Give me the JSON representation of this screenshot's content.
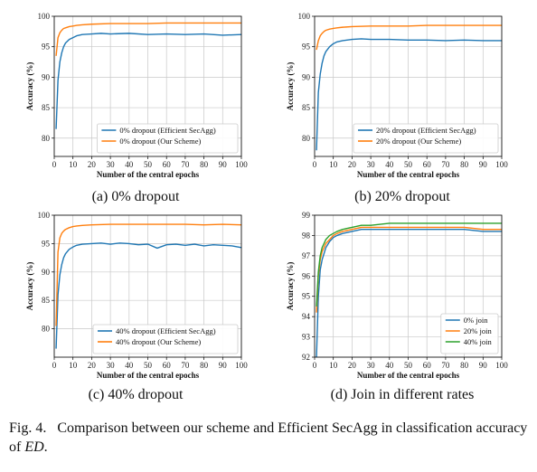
{
  "colors": {
    "blue": "#1f77b4",
    "orange": "#ff7f0e",
    "green": "#2ca02c",
    "grid": "#c8c8c8",
    "frame": "#000000"
  },
  "caption": {
    "label": "Fig. 4.",
    "text": "Comparison between our scheme and Efficient SecAgg in classification accuracy of",
    "math": "ED",
    "end": "."
  },
  "chart_data": [
    {
      "type": "line",
      "subcaption": "(a)  0% dropout",
      "xlabel": "Number of the central epochs",
      "ylabel": "Accuracy (%)",
      "xlim": [
        0,
        100
      ],
      "ylim": [
        77,
        100
      ],
      "xticks": [
        0,
        10,
        20,
        30,
        40,
        50,
        60,
        70,
        80,
        90,
        100
      ],
      "yticks": [
        80,
        85,
        90,
        95,
        100
      ],
      "grid": true,
      "legend_position": "lower-right",
      "series": [
        {
          "name": "0% dropout (Efficient SecAgg)",
          "color": "blue",
          "x": [
            1,
            2,
            3,
            4,
            5,
            6,
            8,
            10,
            12,
            15,
            20,
            25,
            30,
            40,
            50,
            60,
            70,
            80,
            90,
            100
          ],
          "y": [
            81.5,
            89.5,
            92.5,
            94.0,
            95.0,
            95.6,
            96.2,
            96.5,
            96.8,
            97.0,
            97.1,
            97.2,
            97.1,
            97.2,
            97.0,
            97.1,
            97.0,
            97.1,
            96.9,
            97.0
          ]
        },
        {
          "name": "0% dropout (Our Scheme)",
          "color": "orange",
          "x": [
            1,
            2,
            3,
            4,
            5,
            6,
            8,
            10,
            12,
            15,
            20,
            30,
            40,
            50,
            60,
            70,
            80,
            90,
            100
          ],
          "y": [
            93.5,
            96.5,
            97.3,
            97.7,
            98.0,
            98.1,
            98.3,
            98.4,
            98.5,
            98.6,
            98.7,
            98.8,
            98.8,
            98.8,
            98.9,
            98.9,
            98.9,
            98.9,
            98.9
          ]
        }
      ]
    },
    {
      "type": "line",
      "subcaption": "(b)  20% dropout",
      "xlabel": "Number of the central epochs",
      "ylabel": "Accuracy (%)",
      "xlim": [
        0,
        100
      ],
      "ylim": [
        77,
        100
      ],
      "xticks": [
        0,
        10,
        20,
        30,
        40,
        50,
        60,
        70,
        80,
        90,
        100
      ],
      "yticks": [
        80,
        85,
        90,
        95,
        100
      ],
      "grid": true,
      "legend_position": "lower-right",
      "series": [
        {
          "name": "20% dropout (Efficient SecAgg)",
          "color": "blue",
          "x": [
            1,
            2,
            3,
            4,
            5,
            6,
            8,
            10,
            12,
            15,
            20,
            25,
            30,
            40,
            50,
            60,
            70,
            80,
            90,
            100
          ],
          "y": [
            78.0,
            87.5,
            90.5,
            92.3,
            93.5,
            94.2,
            95.0,
            95.5,
            95.8,
            96.0,
            96.2,
            96.3,
            96.2,
            96.2,
            96.1,
            96.1,
            96.0,
            96.1,
            96.0,
            96.0
          ]
        },
        {
          "name": "20% dropout (Our Scheme)",
          "color": "orange",
          "x": [
            1,
            2,
            3,
            4,
            5,
            6,
            8,
            10,
            12,
            15,
            20,
            30,
            40,
            50,
            60,
            70,
            80,
            90,
            100
          ],
          "y": [
            94.5,
            96.0,
            96.8,
            97.2,
            97.5,
            97.7,
            97.9,
            98.0,
            98.1,
            98.2,
            98.3,
            98.4,
            98.4,
            98.4,
            98.5,
            98.5,
            98.5,
            98.5,
            98.5
          ]
        }
      ]
    },
    {
      "type": "line",
      "subcaption": "(c)  40% dropout",
      "xlabel": "Number of the central epochs",
      "ylabel": "Accuracy (%)",
      "xlim": [
        0,
        100
      ],
      "ylim": [
        75,
        100
      ],
      "xticks": [
        0,
        10,
        20,
        30,
        40,
        50,
        60,
        70,
        80,
        90,
        100
      ],
      "yticks": [
        80,
        85,
        90,
        95,
        100
      ],
      "grid": true,
      "legend_position": "lower-right",
      "series": [
        {
          "name": "40% dropout (Efficient SecAgg)",
          "color": "blue",
          "x": [
            1,
            2,
            3,
            4,
            5,
            6,
            8,
            10,
            12,
            15,
            20,
            25,
            30,
            35,
            40,
            45,
            50,
            55,
            60,
            65,
            70,
            75,
            80,
            85,
            90,
            95,
            100
          ],
          "y": [
            76.5,
            86.0,
            89.5,
            91.3,
            92.5,
            93.2,
            94.0,
            94.4,
            94.7,
            94.9,
            95.0,
            95.1,
            94.9,
            95.1,
            95.0,
            94.8,
            94.9,
            94.2,
            94.8,
            94.9,
            94.7,
            94.9,
            94.6,
            94.8,
            94.7,
            94.6,
            94.3
          ]
        },
        {
          "name": "40% dropout (Our Scheme)",
          "color": "orange",
          "x": [
            1,
            2,
            3,
            4,
            5,
            6,
            8,
            10,
            12,
            15,
            20,
            30,
            40,
            50,
            60,
            70,
            80,
            90,
            100
          ],
          "y": [
            80.5,
            93.5,
            96.0,
            96.8,
            97.2,
            97.5,
            97.8,
            98.0,
            98.1,
            98.2,
            98.3,
            98.4,
            98.4,
            98.4,
            98.4,
            98.4,
            98.3,
            98.4,
            98.3
          ]
        }
      ]
    },
    {
      "type": "line",
      "subcaption": "(d)  Join in different rates",
      "xlabel": "Number of the central epochs",
      "ylabel": "Accuracy (%)",
      "xlim": [
        0,
        100
      ],
      "ylim": [
        92,
        99
      ],
      "xticks": [
        0,
        10,
        20,
        30,
        40,
        50,
        60,
        70,
        80,
        90,
        100
      ],
      "yticks": [
        92,
        93,
        94,
        95,
        96,
        97,
        98,
        99
      ],
      "grid": true,
      "legend_position": "lower-right",
      "series": [
        {
          "name": "0% join",
          "color": "blue",
          "x": [
            1,
            2,
            3,
            4,
            5,
            6,
            8,
            10,
            12,
            15,
            20,
            25,
            30,
            40,
            50,
            60,
            70,
            80,
            90,
            100
          ],
          "y": [
            92.0,
            95.0,
            96.3,
            96.8,
            97.1,
            97.4,
            97.7,
            97.9,
            98.0,
            98.1,
            98.2,
            98.3,
            98.3,
            98.3,
            98.3,
            98.3,
            98.3,
            98.3,
            98.2,
            98.2
          ]
        },
        {
          "name": "20% join",
          "color": "orange",
          "x": [
            1,
            2,
            3,
            4,
            5,
            6,
            8,
            10,
            12,
            15,
            20,
            25,
            30,
            40,
            50,
            60,
            70,
            80,
            90,
            100
          ],
          "y": [
            94.2,
            96.0,
            96.8,
            97.2,
            97.4,
            97.6,
            97.8,
            98.0,
            98.1,
            98.2,
            98.3,
            98.4,
            98.4,
            98.4,
            98.4,
            98.4,
            98.4,
            98.4,
            98.3,
            98.3
          ]
        },
        {
          "name": "40% join",
          "color": "green",
          "x": [
            1,
            2,
            3,
            4,
            5,
            6,
            8,
            10,
            12,
            15,
            20,
            25,
            30,
            40,
            50,
            60,
            70,
            80,
            90,
            100
          ],
          "y": [
            94.5,
            96.2,
            97.0,
            97.4,
            97.6,
            97.8,
            98.0,
            98.1,
            98.2,
            98.3,
            98.4,
            98.5,
            98.5,
            98.6,
            98.6,
            98.6,
            98.6,
            98.6,
            98.6,
            98.6
          ]
        }
      ]
    }
  ]
}
